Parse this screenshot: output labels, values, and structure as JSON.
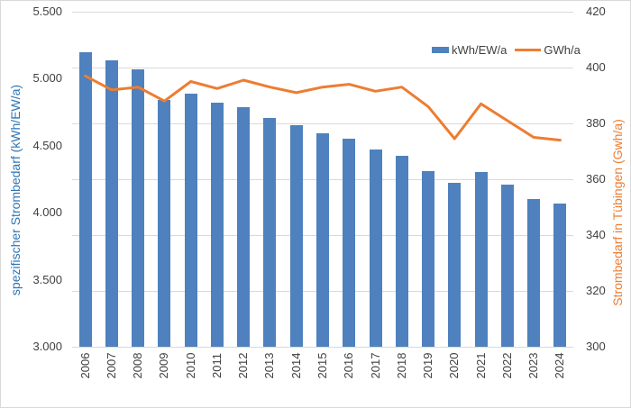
{
  "chart_data": {
    "type": "combo-bar-line",
    "categories": [
      "2006",
      "2007",
      "2008",
      "2009",
      "2010",
      "2011",
      "2012",
      "2013",
      "2014",
      "2015",
      "2016",
      "2017",
      "2018",
      "2019",
      "2020",
      "2021",
      "2022",
      "2023",
      "2024"
    ],
    "series": [
      {
        "name": "kWh/EW/a",
        "type": "bar",
        "axis": "left",
        "color": "#4e81bd",
        "values": [
          5200,
          5135,
          5070,
          4840,
          4890,
          4820,
          4785,
          4710,
          4655,
          4595,
          4550,
          4475,
          4425,
          4310,
          4220,
          4305,
          4210,
          4100,
          4070
        ]
      },
      {
        "name": "GWh/a",
        "type": "line",
        "axis": "right",
        "color": "#ed7d31",
        "values": [
          397,
          392,
          393,
          388,
          395,
          392.5,
          395.5,
          393,
          391,
          393,
          394,
          391.5,
          393,
          386,
          374.5,
          387,
          381,
          375,
          374
        ]
      }
    ],
    "left_axis": {
      "label": "spezifischer Strombedarf (kWh/EW/a)",
      "min": 3000,
      "max": 5500,
      "tick_step": 500,
      "tick_labels": [
        "5.500",
        "5.000",
        "4.500",
        "4.000",
        "3.500",
        "3.000"
      ],
      "color": "#2e75b6"
    },
    "right_axis": {
      "label": "Strombedarf in Tübingen (Gwh/a)",
      "min": 300,
      "max": 420,
      "tick_step": 20,
      "tick_labels": [
        "420",
        "400",
        "380",
        "360",
        "340",
        "320",
        "300"
      ],
      "color": "#ed7d31"
    },
    "grid": true,
    "gridline_color": "#d9d9d9",
    "tick_label_color": "#404040",
    "legend_position": "top-inside-right",
    "legend": [
      "kWh/EW/a",
      "GWh/a"
    ]
  }
}
